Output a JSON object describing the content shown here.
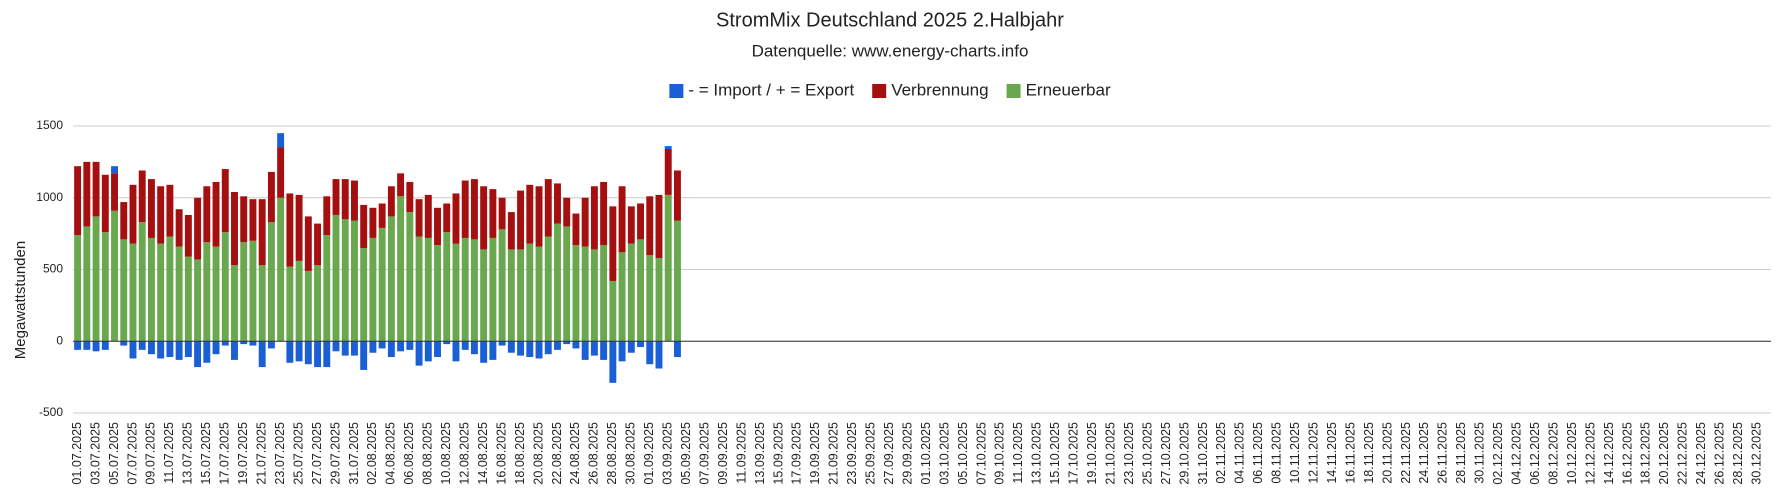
{
  "chart_data": {
    "type": "stacked_bar",
    "title": "StromMix Deutschland 2025 2.Halbjahr",
    "subtitle": "Datenquelle: www.energy-charts.info",
    "y_label": "Megawattstunden",
    "ylim": [
      -500,
      1500
    ],
    "yticks": [
      -500,
      0,
      500,
      1000,
      1500
    ],
    "grid": true,
    "legend": "top",
    "categories": [
      "01.07.2025",
      null,
      "03.07.2025",
      null,
      "05.07.2025",
      null,
      "07.07.2025",
      null,
      "09.07.2025",
      null,
      "11.07.2025",
      null,
      "13.07.2025",
      null,
      "15.07.2025",
      null,
      "17.07.2025",
      null,
      "19.07.2025",
      null,
      "21.07.2025",
      null,
      "23.07.2025",
      null,
      "25.07.2025",
      null,
      "27.07.2025",
      null,
      "29.07.2025",
      null,
      "31.07.2025",
      null,
      "02.08.2025",
      null,
      "04.08.2025",
      null,
      "06.08.2025",
      null,
      "08.08.2025",
      null,
      "10.08.2025",
      null,
      "12.08.2025",
      null,
      "14.08.2025",
      null,
      "16.08.2025",
      null,
      "18.08.2025",
      null,
      "20.08.2025",
      null,
      "22.08.2025",
      null,
      "24.08.2025",
      null,
      "26.08.2025",
      null,
      "28.08.2025",
      null,
      "30.08.2025",
      null,
      "01.09.2025",
      null,
      "03.09.2025",
      null,
      "05.09.2025",
      null,
      "07.09.2025",
      null,
      "09.09.2025",
      null,
      "11.09.2025",
      null,
      "13.09.2025",
      null,
      "15.09.2025",
      null,
      "17.09.2025",
      null,
      "19.09.2025",
      null,
      "21.09.2025",
      null,
      "23.09.2025",
      null,
      "25.09.2025",
      null,
      "27.09.2025",
      null,
      "29.09.2025",
      null,
      "01.10.2025",
      null,
      "03.10.2025",
      null,
      "05.10.2025",
      null,
      "07.10.2025",
      null,
      "09.10.2025",
      null,
      "11.10.2025",
      null,
      "13.10.2025",
      null,
      "15.10.2025",
      null,
      "17.10.2025",
      null,
      "19.10.2025",
      null,
      "21.10.2025",
      null,
      "23.10.2025",
      null,
      "25.10.2025",
      null,
      "27.10.2025",
      null,
      "29.10.2025",
      null,
      "31.10.2025",
      null,
      "02.11.2025",
      null,
      "04.11.2025",
      null,
      "06.11.2025",
      null,
      "08.11.2025",
      null,
      "10.11.2025",
      null,
      "12.11.2025",
      null,
      "14.11.2025",
      null,
      "16.11.2025",
      null,
      "18.11.2025",
      null,
      "20.11.2025",
      null,
      "22.11.2025",
      null,
      "24.11.2025",
      null,
      "26.11.2025",
      null,
      "28.11.2025",
      null,
      "30.11.2025",
      null,
      "02.12.2025",
      null,
      "04.12.2025",
      null,
      "06.12.2025",
      null,
      "08.12.2025",
      null,
      "10.12.2025",
      null,
      "12.12.2025",
      null,
      "14.12.2025",
      null,
      "16.12.2025",
      null,
      "18.12.2025",
      null,
      "20.12.2025",
      null,
      "22.12.2025",
      null,
      "24.12.2025",
      null,
      "26.12.2025",
      null,
      "28.12.2025",
      null,
      "30.12.2025",
      null
    ],
    "series": [
      {
        "name": "- = Import / + = Export",
        "color": "#1a5fd6",
        "values": [
          -60,
          -60,
          -70,
          -60,
          50,
          -30,
          -120,
          -60,
          -90,
          -120,
          -110,
          -130,
          -110,
          -180,
          -150,
          -90,
          -30,
          -130,
          -20,
          -30,
          -180,
          -50,
          100,
          -150,
          -140,
          -160,
          -180,
          -180,
          -70,
          -100,
          -100,
          -200,
          -80,
          -50,
          -110,
          -70,
          -60,
          -170,
          -140,
          -110,
          -20,
          -140,
          -60,
          -90,
          -150,
          -130,
          -30,
          -80,
          -100,
          -110,
          -120,
          -90,
          -60,
          -20,
          -50,
          -130,
          -100,
          -130,
          -290,
          -140,
          -80,
          -40,
          -160,
          -190,
          20,
          -110,
          null,
          null,
          null,
          null,
          null,
          null,
          null,
          null,
          null,
          null,
          null,
          null,
          null,
          null,
          null,
          null,
          null,
          null,
          null,
          null,
          null,
          null,
          null,
          null,
          null,
          null,
          null,
          null,
          null,
          null,
          null,
          null,
          null,
          null,
          null,
          null,
          null,
          null,
          null,
          null,
          null,
          null,
          null,
          null,
          null,
          null,
          null,
          null,
          null,
          null,
          null,
          null,
          null,
          null,
          null,
          null,
          null,
          null,
          null,
          null,
          null,
          null,
          null,
          null,
          null,
          null,
          null,
          null,
          null,
          null,
          null,
          null,
          null,
          null,
          null,
          null,
          null,
          null,
          null,
          null,
          null,
          null,
          null,
          null,
          null,
          null,
          null,
          null,
          null,
          null,
          null,
          null,
          null,
          null,
          null,
          null,
          null,
          null,
          null,
          null,
          null,
          null,
          null,
          null,
          null,
          null,
          null,
          null,
          null,
          null,
          null,
          null,
          null,
          null,
          null,
          null,
          null,
          null
        ]
      },
      {
        "name": "Verbrennung",
        "color": "#a50f0f",
        "values": [
          480,
          450,
          380,
          400,
          260,
          260,
          410,
          360,
          410,
          400,
          360,
          260,
          290,
          430,
          390,
          450,
          440,
          510,
          320,
          290,
          460,
          350,
          350,
          510,
          460,
          380,
          290,
          270,
          250,
          280,
          280,
          300,
          210,
          170,
          210,
          160,
          210,
          260,
          300,
          260,
          200,
          350,
          400,
          420,
          440,
          340,
          220,
          260,
          410,
          410,
          420,
          400,
          280,
          200,
          220,
          340,
          440,
          440,
          520,
          460,
          260,
          250,
          410,
          440,
          320,
          350,
          null,
          null,
          null,
          null,
          null,
          null,
          null,
          null,
          null,
          null,
          null,
          null,
          null,
          null,
          null,
          null,
          null,
          null,
          null,
          null,
          null,
          null,
          null,
          null,
          null,
          null,
          null,
          null,
          null,
          null,
          null,
          null,
          null,
          null,
          null,
          null,
          null,
          null,
          null,
          null,
          null,
          null,
          null,
          null,
          null,
          null,
          null,
          null,
          null,
          null,
          null,
          null,
          null,
          null,
          null,
          null,
          null,
          null,
          null,
          null,
          null,
          null,
          null,
          null,
          null,
          null,
          null,
          null,
          null,
          null,
          null,
          null,
          null,
          null,
          null,
          null,
          null,
          null,
          null,
          null,
          null,
          null,
          null,
          null,
          null,
          null,
          null,
          null,
          null,
          null,
          null,
          null,
          null,
          null,
          null,
          null,
          null,
          null,
          null,
          null,
          null,
          null,
          null,
          null,
          null,
          null,
          null,
          null,
          null,
          null,
          null,
          null,
          null,
          null,
          null,
          null,
          null,
          null
        ]
      },
      {
        "name": "Erneuerbar",
        "color": "#6aa84f",
        "values": [
          740,
          800,
          870,
          760,
          910,
          710,
          680,
          830,
          720,
          680,
          730,
          660,
          590,
          570,
          690,
          660,
          760,
          530,
          690,
          700,
          530,
          830,
          1000,
          520,
          560,
          490,
          530,
          740,
          880,
          850,
          840,
          650,
          720,
          790,
          870,
          1010,
          900,
          730,
          720,
          670,
          760,
          680,
          720,
          710,
          640,
          720,
          780,
          640,
          640,
          680,
          660,
          730,
          820,
          800,
          670,
          660,
          640,
          670,
          420,
          620,
          680,
          710,
          600,
          580,
          1020,
          840,
          null,
          null,
          null,
          null,
          null,
          null,
          null,
          null,
          null,
          null,
          null,
          null,
          null,
          null,
          null,
          null,
          null,
          null,
          null,
          null,
          null,
          null,
          null,
          null,
          null,
          null,
          null,
          null,
          null,
          null,
          null,
          null,
          null,
          null,
          null,
          null,
          null,
          null,
          null,
          null,
          null,
          null,
          null,
          null,
          null,
          null,
          null,
          null,
          null,
          null,
          null,
          null,
          null,
          null,
          null,
          null,
          null,
          null,
          null,
          null,
          null,
          null,
          null,
          null,
          null,
          null,
          null,
          null,
          null,
          null,
          null,
          null,
          null,
          null,
          null,
          null,
          null,
          null,
          null,
          null,
          null,
          null,
          null,
          null,
          null,
          null,
          null,
          null,
          null,
          null,
          null,
          null,
          null,
          null,
          null,
          null,
          null,
          null,
          null,
          null,
          null,
          null,
          null,
          null,
          null,
          null,
          null,
          null,
          null,
          null,
          null,
          null,
          null,
          null,
          null,
          null,
          null,
          null
        ]
      }
    ]
  }
}
